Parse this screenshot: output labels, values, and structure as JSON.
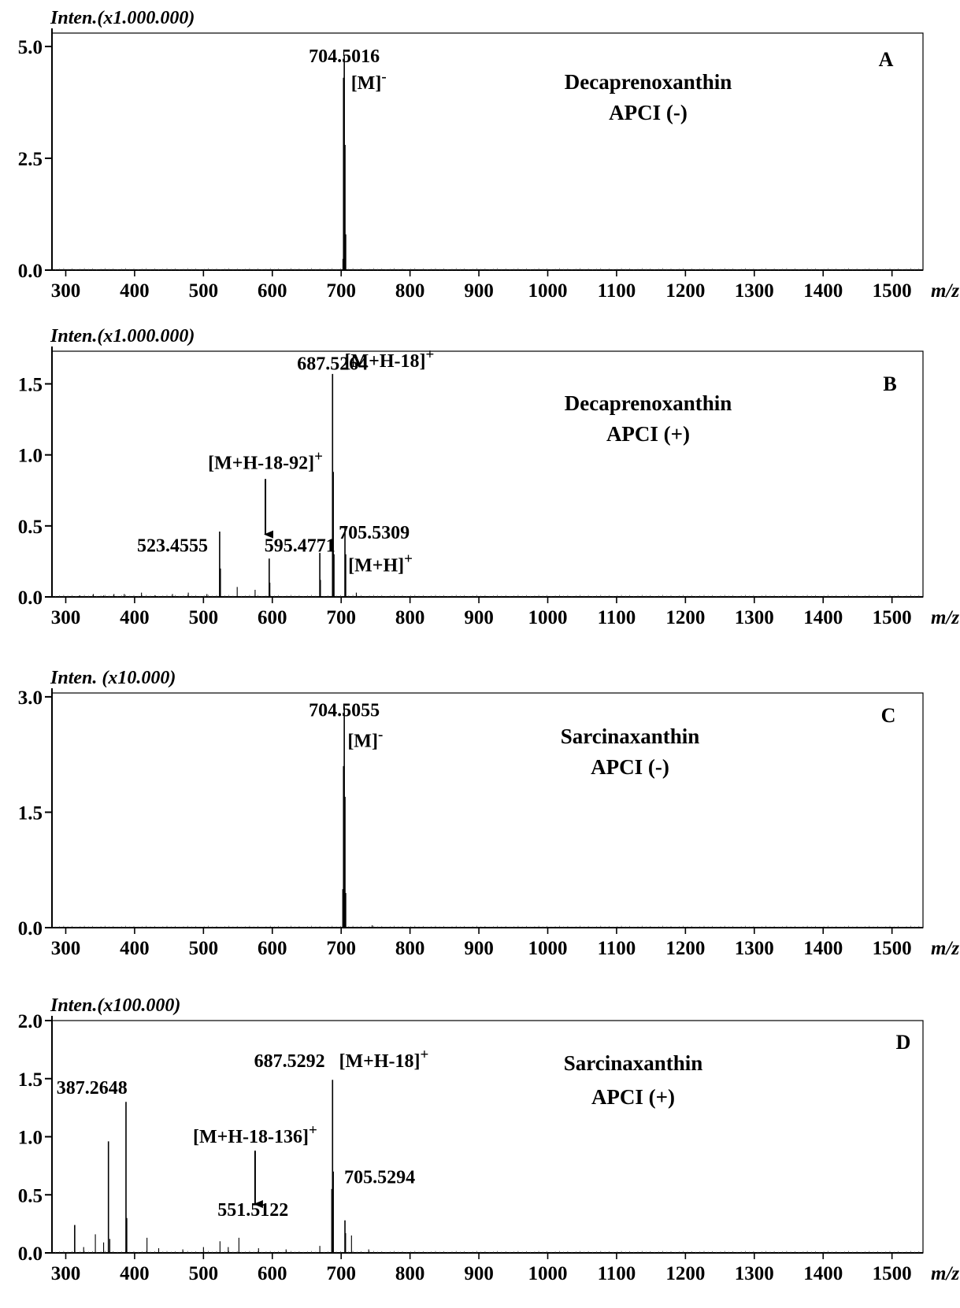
{
  "chart_data": [
    {
      "type": "bar",
      "panel": "A",
      "ylabel": "Inten.(x1.000.000)",
      "xlabel": "m/z",
      "title_lines": [
        "Decaprenoxanthin",
        "APCI (-)"
      ],
      "xlim": [
        280,
        1545
      ],
      "ylim": [
        0,
        5.3
      ],
      "xticks": [
        300,
        400,
        500,
        600,
        700,
        800,
        900,
        1000,
        1100,
        1200,
        1300,
        1400,
        1500
      ],
      "yticks": [
        0.0,
        2.5,
        5.0
      ],
      "ytick_labels": [
        "0.0",
        "2.5",
        "5.0"
      ],
      "peaks": [
        {
          "x": 703.5,
          "y": 4.3
        },
        {
          "x": 704.5,
          "y": 4.8
        },
        {
          "x": 705.5,
          "y": 2.8
        },
        {
          "x": 706.5,
          "y": 0.8
        },
        {
          "x": 702.5,
          "y": 0.25
        }
      ],
      "annotations": [
        {
          "text": "704.5016",
          "x": 704.5,
          "y": 4.65
        },
        {
          "text": "[M]⁻",
          "x": 740,
          "y": 4.05
        }
      ],
      "arrows": []
    },
    {
      "type": "bar",
      "panel": "B",
      "ylabel": "Inten.(x1.000.000)",
      "xlabel": "m/z",
      "title_lines": [
        "Decaprenoxanthin",
        "APCI (+)"
      ],
      "xlim": [
        280,
        1545
      ],
      "ylim": [
        0,
        1.73
      ],
      "xticks": [
        300,
        400,
        500,
        600,
        700,
        800,
        900,
        1000,
        1100,
        1200,
        1300,
        1400,
        1500
      ],
      "yticks": [
        0.0,
        0.5,
        1.0,
        1.5
      ],
      "ytick_labels": [
        "0.0",
        "0.5",
        "1.0",
        "1.5"
      ],
      "peaks": [
        {
          "x": 320,
          "y": 0.01
        },
        {
          "x": 340,
          "y": 0.02
        },
        {
          "x": 355,
          "y": 0.01
        },
        {
          "x": 370,
          "y": 0.02
        },
        {
          "x": 385,
          "y": 0.02
        },
        {
          "x": 410,
          "y": 0.03
        },
        {
          "x": 430,
          "y": 0.01
        },
        {
          "x": 455,
          "y": 0.02
        },
        {
          "x": 478,
          "y": 0.03
        },
        {
          "x": 505,
          "y": 0.02
        },
        {
          "x": 523.5,
          "y": 0.46
        },
        {
          "x": 524.5,
          "y": 0.2
        },
        {
          "x": 549,
          "y": 0.07
        },
        {
          "x": 575,
          "y": 0.05
        },
        {
          "x": 595.5,
          "y": 0.27
        },
        {
          "x": 596.5,
          "y": 0.1
        },
        {
          "x": 669,
          "y": 0.31
        },
        {
          "x": 670,
          "y": 0.12
        },
        {
          "x": 687.5,
          "y": 1.57
        },
        {
          "x": 688.5,
          "y": 0.88
        },
        {
          "x": 689.5,
          "y": 0.3
        },
        {
          "x": 705.5,
          "y": 0.5
        },
        {
          "x": 706.5,
          "y": 0.3
        },
        {
          "x": 722,
          "y": 0.03
        }
      ],
      "annotations": [
        {
          "text": "687.5264",
          "x": 687.5,
          "y": 1.6
        },
        {
          "text": "[M+H-18]⁺",
          "x": 770,
          "y": 1.62
        },
        {
          "text": "[M+H-18-92]⁺",
          "x": 590,
          "y": 0.9
        },
        {
          "text": "523.4555",
          "x": 455,
          "y": 0.32
        },
        {
          "text": "595.4771",
          "x": 640,
          "y": 0.32
        },
        {
          "text": "705.5309",
          "x": 748,
          "y": 0.41
        },
        {
          "text": "[M+H]⁺",
          "x": 757,
          "y": 0.18
        }
      ],
      "arrows": [
        {
          "x": 590,
          "y_from": 0.83,
          "y_to": 0.44
        }
      ]
    },
    {
      "type": "bar",
      "panel": "C",
      "ylabel": "Inten. (x10.000)",
      "xlabel": "m/z",
      "title_lines": [
        "Sarcinaxanthin",
        "APCI (-)"
      ],
      "xlim": [
        280,
        1545
      ],
      "ylim": [
        0,
        3.05
      ],
      "xticks": [
        300,
        400,
        500,
        600,
        700,
        800,
        900,
        1000,
        1100,
        1200,
        1300,
        1400,
        1500
      ],
      "yticks": [
        0.0,
        1.5,
        3.0
      ],
      "ytick_labels": [
        "0.0",
        "1.5",
        "3.0"
      ],
      "peaks": [
        {
          "x": 702.5,
          "y": 0.5
        },
        {
          "x": 703.5,
          "y": 2.1
        },
        {
          "x": 704.5,
          "y": 2.88
        },
        {
          "x": 705.5,
          "y": 1.7
        },
        {
          "x": 706.5,
          "y": 0.45
        },
        {
          "x": 745,
          "y": 0.03
        }
      ],
      "annotations": [
        {
          "text": "704.5055",
          "x": 704.5,
          "y": 2.75
        },
        {
          "text": "[M]⁻",
          "x": 735,
          "y": 2.35
        }
      ],
      "arrows": []
    },
    {
      "type": "bar",
      "panel": "D",
      "ylabel": "Inten.(x100.000)",
      "xlabel": "m/z",
      "title_lines": [
        "Sarcinaxanthin",
        "APCI (+)"
      ],
      "xlim": [
        280,
        1545
      ],
      "ylim": [
        0,
        2.0
      ],
      "xticks": [
        300,
        400,
        500,
        600,
        700,
        800,
        900,
        1000,
        1100,
        1200,
        1300,
        1400,
        1500
      ],
      "yticks": [
        0.0,
        0.5,
        1.0,
        1.5,
        2.0
      ],
      "ytick_labels": [
        "0.0",
        "0.5",
        "1.0",
        "1.5",
        "2.0"
      ],
      "peaks": [
        {
          "x": 313,
          "y": 0.24
        },
        {
          "x": 326,
          "y": 0.05
        },
        {
          "x": 343,
          "y": 0.16
        },
        {
          "x": 355,
          "y": 0.09
        },
        {
          "x": 362,
          "y": 0.96
        },
        {
          "x": 364,
          "y": 0.12
        },
        {
          "x": 387.5,
          "y": 1.3
        },
        {
          "x": 388.5,
          "y": 0.3
        },
        {
          "x": 418,
          "y": 0.13
        },
        {
          "x": 435,
          "y": 0.04
        },
        {
          "x": 470,
          "y": 0.03
        },
        {
          "x": 500,
          "y": 0.05
        },
        {
          "x": 524,
          "y": 0.1
        },
        {
          "x": 536,
          "y": 0.05
        },
        {
          "x": 551.5,
          "y": 0.13
        },
        {
          "x": 580,
          "y": 0.04
        },
        {
          "x": 620,
          "y": 0.03
        },
        {
          "x": 669,
          "y": 0.06
        },
        {
          "x": 686.5,
          "y": 0.55
        },
        {
          "x": 687.5,
          "y": 1.49
        },
        {
          "x": 688.5,
          "y": 0.7
        },
        {
          "x": 705.5,
          "y": 0.28
        },
        {
          "x": 706.5,
          "y": 0.17
        },
        {
          "x": 715,
          "y": 0.15
        },
        {
          "x": 740,
          "y": 0.03
        }
      ],
      "annotations": [
        {
          "text": "387.2648",
          "x": 338,
          "y": 1.37
        },
        {
          "text": "687.5292",
          "x": 625,
          "y": 1.6
        },
        {
          "text": "[M+H-18]⁺",
          "x": 762,
          "y": 1.6
        },
        {
          "text": "[M+H-18-136]⁺",
          "x": 575,
          "y": 0.95
        },
        {
          "text": "551.5122",
          "x": 572,
          "y": 0.32
        },
        {
          "text": "705.5294",
          "x": 756,
          "y": 0.6
        }
      ],
      "arrows": [
        {
          "x": 575,
          "y_from": 0.88,
          "y_to": 0.42
        }
      ]
    }
  ]
}
